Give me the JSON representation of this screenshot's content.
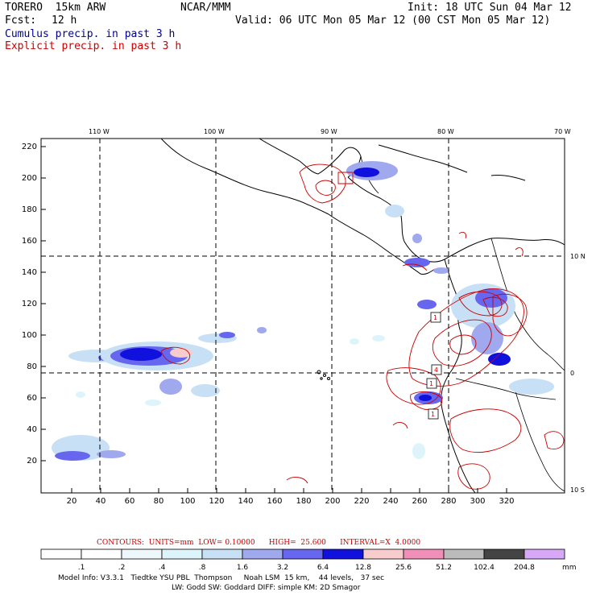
{
  "header": {
    "model": "TORERO  15km ARW",
    "org": "NCAR/MMM",
    "init": "Init: 18 UTC Sun 04 Mar 12",
    "fcst_label": "Fcst:",
    "fcst_value": "12 h",
    "valid": "Valid: 06 UTC Mon 05 Mar 12 (00 CST Mon 05 Mar 12)",
    "cumulus_label": "Cumulus precip. in past 3 h",
    "explicit_label": "Explicit precip. in past 3 h"
  },
  "colors": {
    "cumulus": "#000099",
    "explicit": "#cc0000"
  },
  "map": {
    "lon_labels": [
      "110 W",
      "100 W",
      "90 W",
      "80 W",
      "70 W"
    ],
    "lat_labels": [
      "10 N",
      "0",
      "10 S"
    ],
    "y_ticks": [
      "220",
      "200",
      "180",
      "160",
      "140",
      "120",
      "100",
      "80",
      "60",
      "40",
      "20"
    ],
    "x_ticks": [
      "20",
      "40",
      "60",
      "80",
      "100",
      "120",
      "140",
      "160",
      "180",
      "200",
      "220",
      "240",
      "260",
      "280",
      "300",
      "320"
    ],
    "box_labels": [
      "1",
      "4",
      "1",
      "1"
    ]
  },
  "legend": {
    "contours_text": "CONTOURS:  UNITS=mm  LOW= 0.10000      HIGH=  25.600      INTERVAL=X  4.0000",
    "thresholds": [
      ".1",
      ".2",
      ".4",
      ".8",
      "1.6",
      "3.2",
      "6.4",
      "12.8",
      "25.6",
      "51.2",
      "102.4",
      "204.8"
    ],
    "unit": "mm",
    "colors": [
      "#ffffff",
      "#ffffff",
      "#eef8fb",
      "#ddf5fa",
      "#c8e0f5",
      "#a0a8ee",
      "#6666ee",
      "#1111dd",
      "#f8cccc",
      "#f090b8",
      "#bbbbbb",
      "#444444",
      "#d8a8f8"
    ]
  },
  "footer": {
    "line1": "Model Info: V3.3.1   Tiedtke YSU PBL  Thompson     Noah LSM  15 km,    44 levels,   37 sec",
    "line2": "LW: Godd SW: Goddard DIFF: simple KM: 2D Smagor"
  }
}
